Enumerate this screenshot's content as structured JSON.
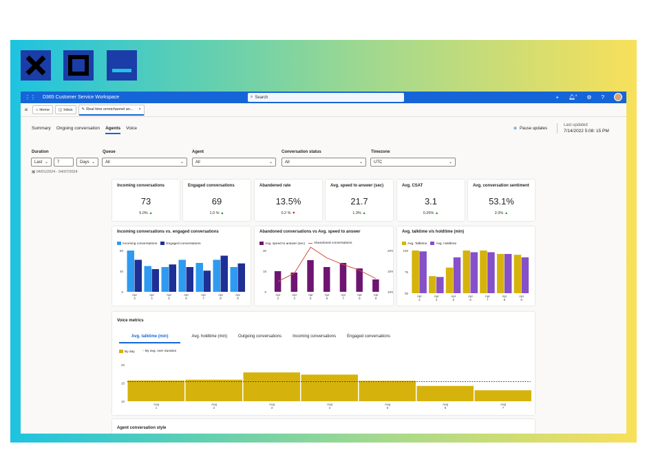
{
  "app": {
    "title": "D365 Customer Service Workspace",
    "search_placeholder": "Search",
    "notification_count": "8"
  },
  "tabs": [
    {
      "label": "Home"
    },
    {
      "label": "Inbox"
    },
    {
      "label": "Real time omnichannel an..."
    }
  ],
  "subnav": [
    "Summary",
    "Ongoing conversation",
    "Agents",
    "Voice"
  ],
  "header": {
    "pause_label": "Pause updates",
    "last_updated_label": "Last updated",
    "last_updated_value": "7/14/2022 5:08: 15 PM"
  },
  "filters": {
    "duration_label": "Duration",
    "duration_mode": "Last",
    "duration_count": "7",
    "duration_unit": "Days",
    "queue_label": "Queue",
    "queue_value": "All",
    "agent_label": "Agent",
    "agent_value": "All",
    "status_label": "Conversation status",
    "status_value": "All",
    "timezone_label": "Timezone",
    "timezone_value": "UTC",
    "date_range": "04/01/2024 - 04/07/2024"
  },
  "kpis": [
    {
      "title": "Incoming conversations",
      "value": "73",
      "change": "5.0%",
      "dir": "up"
    },
    {
      "title": "Engaged conversations",
      "value": "69",
      "change": "1.0 %",
      "dir": "up"
    },
    {
      "title": "Abandened rate",
      "value": "13.5%",
      "change": "0.2 %",
      "dir": "down"
    },
    {
      "title": "Avg. speed to answer (sec)",
      "value": "21.7",
      "change": "1.3%",
      "dir": "up"
    },
    {
      "title": "Avg. CSAT",
      "value": "3.1",
      "change": "0.25%",
      "dir": "up"
    },
    {
      "title": "Avg. conversation sentiment",
      "value": "53.1%",
      "change": "2.0%",
      "dir": "up"
    }
  ],
  "colors": {
    "blue_light": "#2f9bf0",
    "blue_dark": "#1e2f96",
    "purple": "#6e1572",
    "line_red": "#d24f3c",
    "gold": "#d6b30c",
    "violet": "#8550c8"
  },
  "chart_data": [
    {
      "type": "bar",
      "title": "Incoming conversations  vs. engaged conversations",
      "categories": [
        "Apr 3",
        "Apr 4",
        "Apr 5",
        "Apr 6",
        "Apr 7",
        "Apr 8",
        "Apr 9"
      ],
      "series": [
        {
          "name": "Incoming conversations",
          "values": [
            80,
            50,
            48,
            62,
            56,
            62,
            48
          ]
        },
        {
          "name": "Engaged conversations",
          "values": [
            62,
            44,
            53,
            48,
            41,
            70,
            55
          ]
        }
      ],
      "yticks": [
        "80",
        "40",
        "0"
      ],
      "ylim": [
        0,
        80
      ]
    },
    {
      "type": "bar",
      "title": "Abandoned conversations vs Avg. speed to answer",
      "categories": [
        "Apr 2",
        "Apr 4",
        "Apr 5",
        "Apr 6",
        "Apr 7",
        "Apr 8",
        "Apr 9"
      ],
      "series": [
        {
          "name": "Avg. speed to answer (sec)",
          "type": "bar",
          "values": [
            15,
            14,
            23,
            18,
            21,
            17,
            9
          ]
        },
        {
          "name": "Abandoned conversations",
          "type": "line",
          "values": [
            12.5,
            14.5,
            20.8,
            18.2,
            16.6,
            15.2,
            13.2
          ]
        }
      ],
      "yticks_left": [
        "30",
        "15",
        "0"
      ],
      "yticks_right": [
        "20%",
        "15%",
        "10%"
      ],
      "ylim": [
        0,
        30
      ],
      "ylim_right": [
        10,
        20
      ]
    },
    {
      "type": "bar",
      "title": "Avg. talktime v/s holdtime (min)",
      "categories": [
        "Apr 2",
        "Apr 4",
        "Apr 5",
        "Apr 6",
        "Apr 7",
        "Apr 8",
        "Apr 9"
      ],
      "series": [
        {
          "name": "Avg. Talktime",
          "values": [
            100,
            70,
            80,
            100,
            100,
            96,
            95
          ]
        },
        {
          "name": "Avg. Holdtime",
          "values": [
            99,
            69,
            92,
            98,
            98,
            96,
            92
          ]
        }
      ],
      "yticks": [
        "100",
        "75",
        "00"
      ],
      "ylim": [
        50,
        100
      ]
    },
    {
      "type": "bar",
      "title": "Voice metrics",
      "categories": [
        "Aug 1",
        "Aug 2",
        "Aug 3",
        "Aug 4",
        "Aug 5",
        "Aug 6",
        "Aug 7"
      ],
      "series": [
        {
          "name": "By day",
          "values": [
            15.7,
            15.9,
            17.9,
            17.3,
            15.6,
            14.2,
            13
          ]
        },
        {
          "name": "By avg. over duration",
          "type": "line",
          "values": [
            15.4,
            15.4,
            15.4,
            15.4,
            15.4,
            15.4,
            15.4
          ]
        }
      ],
      "yticks": [
        "20",
        "15",
        "10"
      ],
      "ylim": [
        10,
        20
      ]
    }
  ],
  "voice": {
    "title": "Voice metrics",
    "tabs": [
      "Avg. talktime (min)",
      "Avg. holdtime (min)",
      "Outgoing conversations",
      "Incoming conversations",
      "Engaged conversations"
    ],
    "legend_day": "By day",
    "legend_avg": "By avg. over duration"
  },
  "agent_style_title": "Agent conversation style"
}
